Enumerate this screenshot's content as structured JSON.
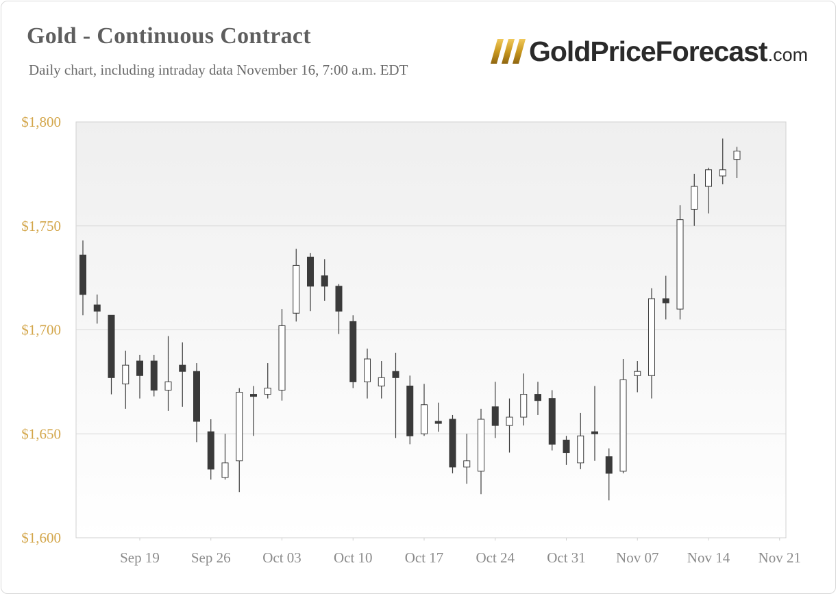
{
  "chart_data": {
    "type": "candlestick",
    "title": "Gold - Continuous Contract",
    "subtitle": "Daily chart, including intraday data November 16, 7:00 a.m. EDT",
    "ylim": [
      1600,
      1800
    ],
    "y_ticks": [
      {
        "value": 1800,
        "label": "$1,800"
      },
      {
        "value": 1750,
        "label": "$1,750"
      },
      {
        "value": 1700,
        "label": "$1,700"
      },
      {
        "value": 1650,
        "label": "$1,650"
      },
      {
        "value": 1600,
        "label": "$1,600"
      }
    ],
    "x_ticks": [
      "Sep 19",
      "Sep 26",
      "Oct 03",
      "Oct 10",
      "Oct 17",
      "Oct 24",
      "Oct 31",
      "Nov 07",
      "Nov 14",
      "Nov 21"
    ],
    "grid": true,
    "candles": [
      {
        "date": "Sep 13",
        "open": 1736,
        "high": 1743,
        "low": 1707,
        "close": 1717
      },
      {
        "date": "Sep 14",
        "open": 1712,
        "high": 1717,
        "low": 1703,
        "close": 1709
      },
      {
        "date": "Sep 15",
        "open": 1707,
        "high": 1707,
        "low": 1669,
        "close": 1677
      },
      {
        "date": "Sep 16",
        "open": 1674,
        "high": 1690,
        "low": 1662,
        "close": 1683
      },
      {
        "date": "Sep 19",
        "open": 1685,
        "high": 1688,
        "low": 1667,
        "close": 1678
      },
      {
        "date": "Sep 20",
        "open": 1685,
        "high": 1688,
        "low": 1668,
        "close": 1671
      },
      {
        "date": "Sep 21",
        "open": 1671,
        "high": 1697,
        "low": 1661,
        "close": 1675
      },
      {
        "date": "Sep 22",
        "open": 1683,
        "high": 1694,
        "low": 1663,
        "close": 1680
      },
      {
        "date": "Sep 23",
        "open": 1680,
        "high": 1684,
        "low": 1646,
        "close": 1656
      },
      {
        "date": "Sep 26",
        "open": 1651,
        "high": 1657,
        "low": 1628,
        "close": 1633
      },
      {
        "date": "Sep 27",
        "open": 1629,
        "high": 1650,
        "low": 1628,
        "close": 1636
      },
      {
        "date": "Sep 28",
        "open": 1637,
        "high": 1672,
        "low": 1622,
        "close": 1670
      },
      {
        "date": "Sep 29",
        "open": 1669,
        "high": 1673,
        "low": 1649,
        "close": 1668
      },
      {
        "date": "Sep 30",
        "open": 1669,
        "high": 1684,
        "low": 1667,
        "close": 1672
      },
      {
        "date": "Oct 03",
        "open": 1671,
        "high": 1710,
        "low": 1666,
        "close": 1702
      },
      {
        "date": "Oct 04",
        "open": 1708,
        "high": 1739,
        "low": 1704,
        "close": 1731
      },
      {
        "date": "Oct 05",
        "open": 1735,
        "high": 1737,
        "low": 1709,
        "close": 1721
      },
      {
        "date": "Oct 06",
        "open": 1726,
        "high": 1734,
        "low": 1714,
        "close": 1721
      },
      {
        "date": "Oct 07",
        "open": 1721,
        "high": 1722,
        "low": 1698,
        "close": 1709
      },
      {
        "date": "Oct 10",
        "open": 1704,
        "high": 1707,
        "low": 1672,
        "close": 1675
      },
      {
        "date": "Oct 11",
        "open": 1675,
        "high": 1691,
        "low": 1667,
        "close": 1686
      },
      {
        "date": "Oct 12",
        "open": 1673,
        "high": 1685,
        "low": 1667,
        "close": 1677
      },
      {
        "date": "Oct 13",
        "open": 1680,
        "high": 1689,
        "low": 1648,
        "close": 1677
      },
      {
        "date": "Oct 14",
        "open": 1673,
        "high": 1678,
        "low": 1645,
        "close": 1649
      },
      {
        "date": "Oct 17",
        "open": 1650,
        "high": 1674,
        "low": 1649,
        "close": 1664
      },
      {
        "date": "Oct 18",
        "open": 1656,
        "high": 1665,
        "low": 1651,
        "close": 1655
      },
      {
        "date": "Oct 19",
        "open": 1657,
        "high": 1659,
        "low": 1631,
        "close": 1634
      },
      {
        "date": "Oct 20",
        "open": 1634,
        "high": 1650,
        "low": 1626,
        "close": 1637
      },
      {
        "date": "Oct 21",
        "open": 1632,
        "high": 1662,
        "low": 1621,
        "close": 1657
      },
      {
        "date": "Oct 24",
        "open": 1663,
        "high": 1675,
        "low": 1648,
        "close": 1654
      },
      {
        "date": "Oct 25",
        "open": 1654,
        "high": 1667,
        "low": 1641,
        "close": 1658
      },
      {
        "date": "Oct 26",
        "open": 1658,
        "high": 1679,
        "low": 1654,
        "close": 1669
      },
      {
        "date": "Oct 27",
        "open": 1669,
        "high": 1675,
        "low": 1659,
        "close": 1666
      },
      {
        "date": "Oct 28",
        "open": 1667,
        "high": 1671,
        "low": 1642,
        "close": 1645
      },
      {
        "date": "Oct 31",
        "open": 1647,
        "high": 1649,
        "low": 1635,
        "close": 1641
      },
      {
        "date": "Nov 01",
        "open": 1636,
        "high": 1660,
        "low": 1633,
        "close": 1649
      },
      {
        "date": "Nov 02",
        "open": 1651,
        "high": 1673,
        "low": 1637,
        "close": 1650
      },
      {
        "date": "Nov 03",
        "open": 1639,
        "high": 1643,
        "low": 1618,
        "close": 1631
      },
      {
        "date": "Nov 04",
        "open": 1632,
        "high": 1686,
        "low": 1631,
        "close": 1676
      },
      {
        "date": "Nov 07",
        "open": 1678,
        "high": 1685,
        "low": 1670,
        "close": 1680
      },
      {
        "date": "Nov 08",
        "open": 1678,
        "high": 1720,
        "low": 1667,
        "close": 1715
      },
      {
        "date": "Nov 09",
        "open": 1715,
        "high": 1726,
        "low": 1705,
        "close": 1713
      },
      {
        "date": "Nov 10",
        "open": 1710,
        "high": 1760,
        "low": 1705,
        "close": 1753
      },
      {
        "date": "Nov 11",
        "open": 1758,
        "high": 1775,
        "low": 1750,
        "close": 1769
      },
      {
        "date": "Nov 14",
        "open": 1769,
        "high": 1778,
        "low": 1756,
        "close": 1777
      },
      {
        "date": "Nov 15",
        "open": 1774,
        "high": 1792,
        "low": 1770,
        "close": 1777
      },
      {
        "date": "Nov 16",
        "open": 1782,
        "high": 1788,
        "low": 1773,
        "close": 1786
      }
    ]
  },
  "logo": {
    "brand": "GoldPriceForecast",
    "tld": ".com"
  },
  "colors": {
    "up_fill": "#ffffff",
    "down_fill": "#3a3a3a",
    "candle_stroke": "#3a3a3a",
    "y_label": "#d3a64a",
    "x_label": "#8a8a8a",
    "grid": "#d8d8d8",
    "logo_gold": "#c9981f"
  }
}
